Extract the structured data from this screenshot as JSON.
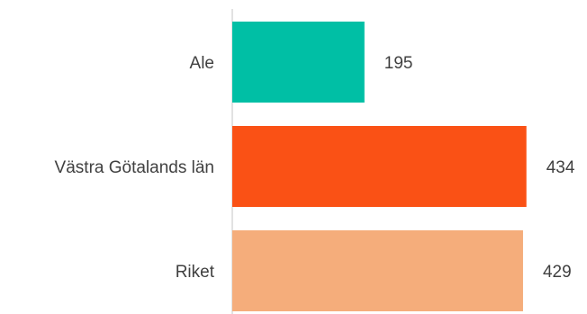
{
  "chart_data": {
    "type": "bar",
    "orientation": "horizontal",
    "title": "",
    "xlabel": "",
    "ylabel": "",
    "categories": [
      "Ale",
      "Västra Götalands län",
      "Riket"
    ],
    "values": [
      195,
      434,
      429
    ],
    "value_labels": [
      "195",
      "434",
      "429"
    ],
    "colors": [
      "#00BFA5",
      "#FA5115",
      "#F5AD7B"
    ],
    "xlim": [
      0,
      445
    ],
    "grid": false,
    "legend": "none"
  }
}
